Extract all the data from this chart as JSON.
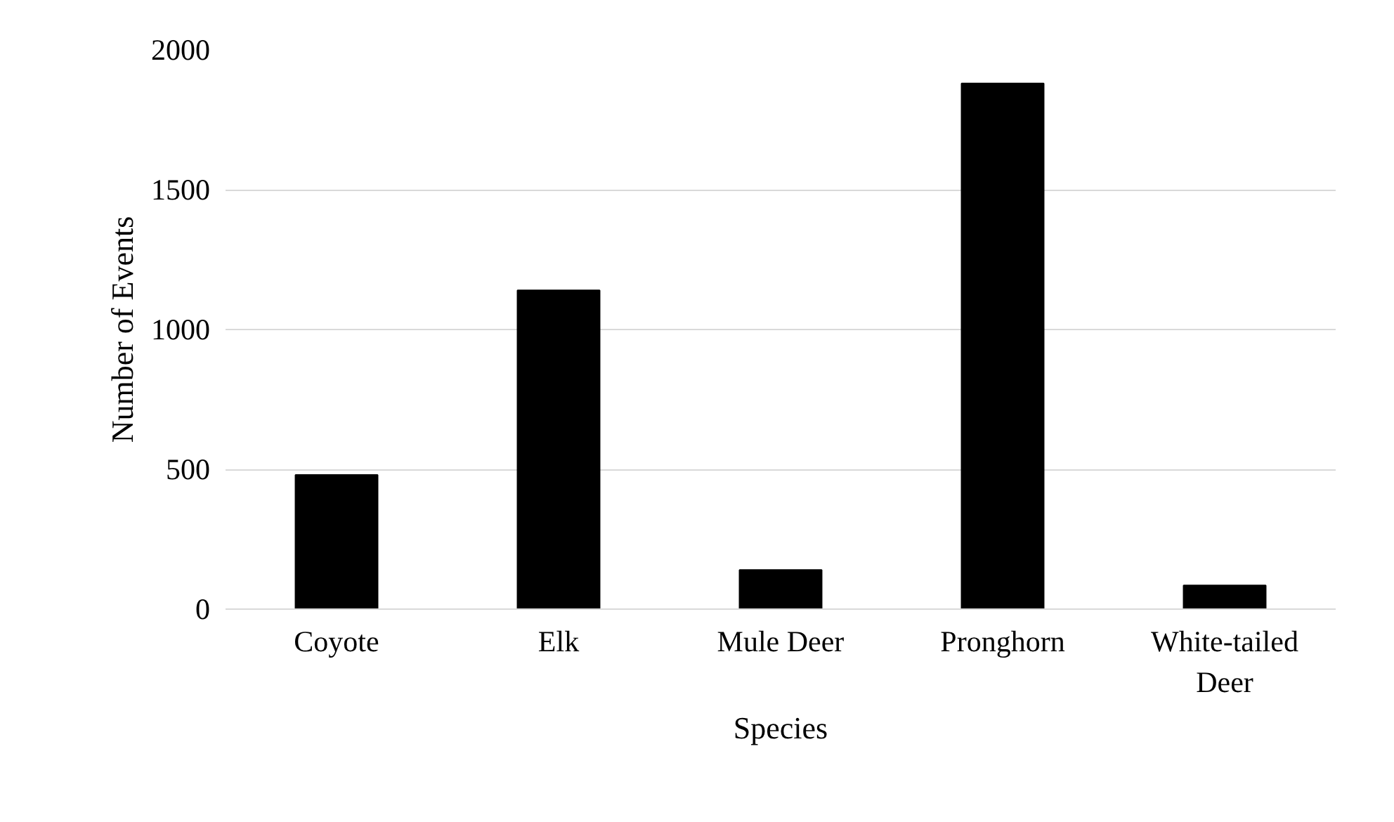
{
  "chart_data": {
    "type": "bar",
    "xlabel": "Species",
    "ylabel": "Number of Events",
    "categories": [
      "Coyote",
      "Elk",
      "Mule Deer",
      "Pronghorn",
      "White-tailed Deer"
    ],
    "values": [
      480,
      1140,
      140,
      1880,
      85
    ],
    "color": "#000000",
    "ylim": [
      0,
      2000
    ],
    "yticks": [
      0,
      500,
      1000,
      1500,
      2000
    ],
    "grid": "y"
  }
}
